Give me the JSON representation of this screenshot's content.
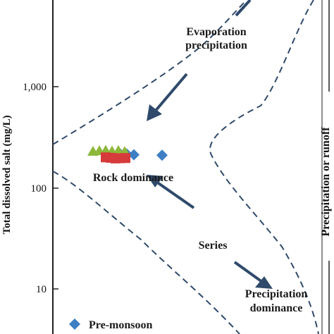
{
  "chart_data": {
    "type": "scatter",
    "title": "",
    "xlabel": "",
    "ylabel": "Total dissolved salt (mg/L)",
    "y_scale": "log",
    "y_ticks": [
      {
        "value": 10,
        "label": "10"
      },
      {
        "value": 100,
        "label": "100"
      },
      {
        "value": 1000,
        "label": "1,000"
      }
    ],
    "right_axis_label": "Precipitation or runoff",
    "annotations": {
      "evaporation": [
        "Evaporation",
        "precipitation"
      ],
      "rock": "Rock dominance",
      "series": "Series",
      "precipitation": [
        "Precipitation",
        "dominance"
      ]
    },
    "legend": [
      {
        "label": "Pre-monsoon",
        "marker": "diamond",
        "color": "#3d7fc2"
      }
    ],
    "series": [
      {
        "name": "Pre-monsoon",
        "marker": "diamond",
        "color": "#3d7fc2",
        "points": [
          {
            "y": 215
          },
          {
            "y": 218
          },
          {
            "y": 215
          },
          {
            "y": 212
          },
          {
            "y": 210
          }
        ]
      },
      {
        "marker": "triangle",
        "color": "#8db83a",
        "points": [
          {
            "y": 225
          },
          {
            "y": 228
          },
          {
            "y": 230
          },
          {
            "y": 226
          },
          {
            "y": 229
          },
          {
            "y": 224
          }
        ]
      },
      {
        "marker": "square",
        "color": "#d63a3a",
        "points": [
          {
            "y": 200
          },
          {
            "y": 198
          },
          {
            "y": 195
          },
          {
            "y": 196
          },
          {
            "y": 197
          }
        ]
      }
    ]
  }
}
